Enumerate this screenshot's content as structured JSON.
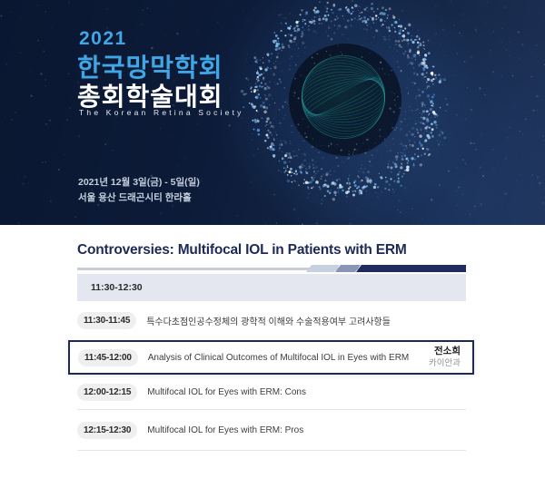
{
  "banner": {
    "year": "2021",
    "title_line1": "한국망막학회",
    "title_line2": "총회학술대회",
    "subtitle": "The Korean Retina Society",
    "date": "2021년 12월 3일(금) - 5일(일)",
    "venue": "서울 용산 드래곤시티 한라홀",
    "colors": {
      "accent_blue": "#41a6e6",
      "background_navy": "#0a1731",
      "particle_blue": "#7fc0f4",
      "sphere_teal": "#2aa58f"
    }
  },
  "session": {
    "title": "Controversies: Multifocal IOL in Patients with ERM",
    "time_range": "11:30-12:30",
    "items": [
      {
        "time": "11:30-11:45",
        "title": "특수다초점인공수정체의 광학적 이해와 수술적용여부 고려사항들",
        "speaker": "",
        "affiliation": "",
        "highlighted": false
      },
      {
        "time": "11:45-12:00",
        "title": "Analysis of Clinical Outcomes of Multifocal IOL in Eyes with ERM",
        "speaker": "전소희",
        "affiliation": "카이안과",
        "highlighted": true
      },
      {
        "time": "12:00-12:15",
        "title": "Multifocal IOL for Eyes with ERM: Cons",
        "speaker": "",
        "affiliation": "",
        "highlighted": false
      },
      {
        "time": "12:15-12:30",
        "title": "Multifocal IOL for Eyes with ERM: Pros",
        "speaker": "",
        "affiliation": "",
        "highlighted": false
      }
    ],
    "colors": {
      "navy": "#1d2a56",
      "header_bg": "#e4e7f0",
      "badge_bg": "#efefef"
    }
  }
}
